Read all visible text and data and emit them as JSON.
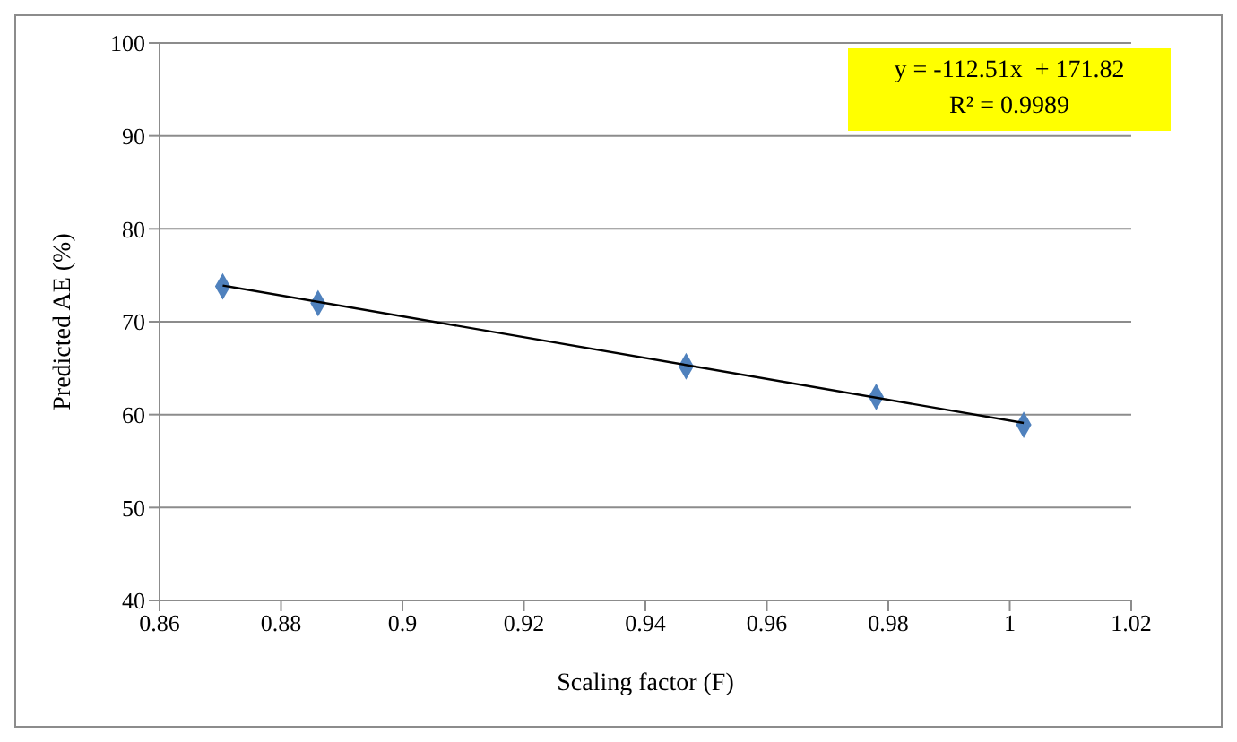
{
  "chart_data": {
    "type": "scatter",
    "xlabel": "Scaling factor (F)",
    "ylabel": "Predicted AE (%)",
    "xlim": [
      0.86,
      1.02
    ],
    "xticks": [
      0.86,
      0.88,
      0.9,
      0.92,
      0.94,
      0.96,
      0.98,
      1,
      1.02
    ],
    "ylim": [
      40,
      100
    ],
    "yticks": [
      40,
      50,
      60,
      70,
      80,
      90,
      100
    ],
    "grid": "y",
    "series": [
      {
        "color": "#4f81bd",
        "marker": "diamond",
        "x": [
          0.8704,
          0.8861,
          0.9467,
          0.978,
          1.0023
        ],
        "values": [
          73.8,
          72,
          65.2,
          61.9,
          58.9
        ]
      },
      {
        "type": "line",
        "marker": "none",
        "color": "#000000",
        "x": [
          0.8704,
          1.0023
        ],
        "values": [
          73.9,
          59.1
        ]
      }
    ],
    "annotations": [
      "y = -112.51x  + 171.82",
      "R² = 0.9989"
    ]
  }
}
